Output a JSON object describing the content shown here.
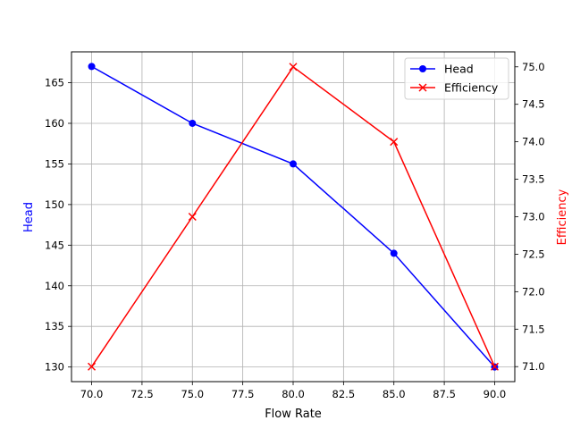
{
  "chart_data": {
    "type": "line",
    "title": "",
    "xlabel": "Flow Rate",
    "ylabel": "Head",
    "y2label": "Efficiency",
    "x": [
      70,
      75,
      80,
      85,
      90
    ],
    "xlim": [
      69,
      91
    ],
    "ylim": [
      128.2,
      168.8
    ],
    "y2lim": [
      70.8,
      75.2
    ],
    "xticks": [
      "70.0",
      "72.5",
      "75.0",
      "77.5",
      "80.0",
      "82.5",
      "85.0",
      "87.5",
      "90.0"
    ],
    "yticks": [
      "130",
      "135",
      "140",
      "145",
      "150",
      "155",
      "160",
      "165"
    ],
    "y2ticks": [
      "71.0",
      "71.5",
      "72.0",
      "72.5",
      "73.0",
      "73.5",
      "74.0",
      "74.5",
      "75.0"
    ],
    "grid": true,
    "legend_position": "upper right",
    "series": [
      {
        "name": "Head",
        "axis": "left",
        "values": [
          167,
          160,
          155,
          144,
          130
        ],
        "color": "#0000ff",
        "marker": "o"
      },
      {
        "name": "Efficiency",
        "axis": "right",
        "values": [
          71,
          73,
          75,
          74,
          71
        ],
        "color": "#ff0000",
        "marker": "x"
      }
    ]
  }
}
